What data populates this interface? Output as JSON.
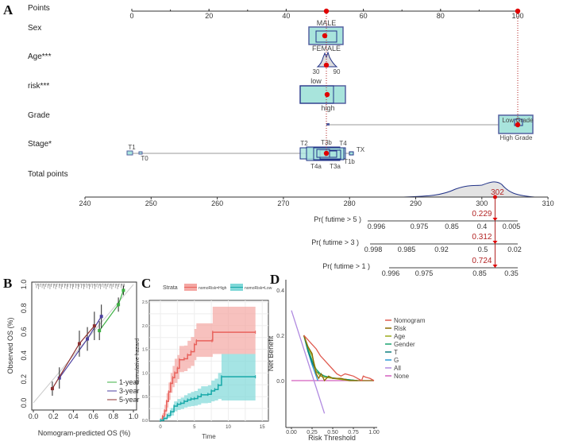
{
  "panels": [
    "A",
    "B",
    "C",
    "D"
  ],
  "chart_data": [
    {
      "type": "nomogram",
      "panel": "A",
      "points_axis": {
        "label": "Points",
        "range": [
          0,
          100
        ],
        "ticks": [
          0,
          20,
          40,
          60,
          80,
          100
        ]
      },
      "variables": [
        {
          "label": "Sex",
          "levels": [
            "MALE",
            "FEMALE"
          ],
          "points": [
            50,
            51
          ],
          "selected_points": 50
        },
        {
          "label": "Age***",
          "levels": [
            "30",
            "90"
          ],
          "points": [
            48,
            52
          ],
          "selected_points": 50.5
        },
        {
          "label": "risk***",
          "levels": [
            "low",
            "high"
          ],
          "points": [
            47,
            51
          ],
          "selected_points": 51
        },
        {
          "label": "Grade",
          "levels": [
            "Low Grade",
            "High Grade"
          ],
          "points": [
            51,
            100
          ],
          "selected_points": 100
        },
        {
          "label": "Stage*",
          "levels": [
            "T1",
            "T0",
            "T2",
            "T3b",
            "T4",
            "T1b",
            "TX",
            "T4a",
            "T3a"
          ],
          "points": [
            0,
            3,
            48,
            51,
            52,
            53,
            56,
            51,
            50
          ],
          "selected_points": 51
        }
      ],
      "total_points": {
        "label": "Total points",
        "range": [
          240,
          310
        ],
        "ticks": [
          240,
          250,
          260,
          270,
          280,
          290,
          300,
          310
        ],
        "value": "302"
      },
      "probabilities": [
        {
          "label": "Pr( futime > 5 )",
          "ticks": [
            "0.996",
            "0.975",
            "0.85",
            "0.4",
            "0.005"
          ],
          "value": "0.229"
        },
        {
          "label": "Pr( futime > 3 )",
          "ticks": [
            "0.998",
            "0.985",
            "0.92",
            "0.5",
            "0.02"
          ],
          "value": "0.312"
        },
        {
          "label": "Pr( futime > 1 )",
          "ticks": [
            "0.996",
            "0.975",
            "0.85",
            "0.35"
          ],
          "value": "0.724"
        }
      ]
    },
    {
      "type": "line",
      "panel": "B",
      "xlabel": "Nomogram-predicted OS (%)",
      "ylabel": "Observed OS (%)",
      "xlim": [
        0,
        1
      ],
      "ylim": [
        0,
        1
      ],
      "xticks": [
        "0.0",
        "0.2",
        "0.4",
        "0.6",
        "0.8",
        "1.0"
      ],
      "yticks": [
        "0.0",
        "0.2",
        "0.4",
        "0.6",
        "0.8",
        "1.0"
      ],
      "legend": "bottom-right",
      "series": [
        {
          "name": "1-year",
          "color": "#3cb043",
          "x": [
            0.66,
            0.85,
            0.9
          ],
          "y": [
            0.61,
            0.83,
            0.95
          ],
          "err": [
            0.08,
            0.06,
            0.04
          ]
        },
        {
          "name": "3-year",
          "color": "#4b3fa0",
          "x": [
            0.26,
            0.54,
            0.68
          ],
          "y": [
            0.21,
            0.54,
            0.73
          ],
          "err": [
            0.09,
            0.1,
            0.1
          ]
        },
        {
          "name": "5-year",
          "color": "#8b2f2f",
          "x": [
            0.19,
            0.46,
            0.61
          ],
          "y": [
            0.12,
            0.5,
            0.65
          ],
          "err": [
            0.06,
            0.11,
            0.12
          ]
        }
      ]
    },
    {
      "type": "line",
      "panel": "C",
      "xlabel": "Time",
      "ylabel": "Cumulative hazard",
      "legend_title": "Strata",
      "legend": "top",
      "xlim": [
        0,
        15
      ],
      "ylim": [
        0,
        2.5
      ],
      "xticks": [
        "0",
        "5",
        "10",
        "15"
      ],
      "yticks": [
        "0.0",
        "0.5",
        "1.0",
        "1.5",
        "2.0",
        "2.5"
      ],
      "series": [
        {
          "name": "nomoRisk=High",
          "color": "#e8625c",
          "fill": "#f4a7a3",
          "x": [
            0,
            0.3,
            0.6,
            0.9,
            1.2,
            1.5,
            1.8,
            2.1,
            2.5,
            2.8,
            3.5,
            4,
            4.5,
            5,
            5.3,
            7.6,
            7.7,
            14
          ],
          "y": [
            0,
            0.08,
            0.2,
            0.4,
            0.6,
            0.78,
            0.9,
            1.0,
            1.1,
            1.28,
            1.3,
            1.38,
            1.45,
            1.6,
            1.68,
            1.68,
            1.86,
            1.86
          ],
          "lower": [
            0,
            0.03,
            0.1,
            0.27,
            0.43,
            0.58,
            0.7,
            0.79,
            0.87,
            1.02,
            1.04,
            1.1,
            1.15,
            1.27,
            1.34,
            1.34,
            1.4,
            1.4
          ],
          "upper": [
            0.05,
            0.15,
            0.33,
            0.57,
            0.8,
            1.0,
            1.15,
            1.3,
            1.38,
            1.57,
            1.58,
            1.68,
            1.76,
            1.93,
            2.05,
            2.05,
            2.4,
            2.4
          ]
        },
        {
          "name": "nomoRisk=Low",
          "color": "#17a8a8",
          "fill": "#7fd8d8",
          "x": [
            0,
            0.5,
            1,
            1.5,
            2,
            2.5,
            3,
            3.5,
            4,
            4.5,
            5,
            5.5,
            6,
            7,
            7.5,
            8,
            8.5,
            9,
            14
          ],
          "y": [
            0,
            0.04,
            0.1,
            0.18,
            0.3,
            0.34,
            0.36,
            0.4,
            0.43,
            0.45,
            0.46,
            0.5,
            0.54,
            0.55,
            0.62,
            0.65,
            0.74,
            0.92,
            0.92
          ],
          "lower": [
            0,
            0.01,
            0.05,
            0.1,
            0.19,
            0.22,
            0.24,
            0.27,
            0.29,
            0.3,
            0.31,
            0.33,
            0.36,
            0.37,
            0.4,
            0.42,
            0.45,
            0.42,
            0.42
          ],
          "upper": [
            0.02,
            0.08,
            0.16,
            0.26,
            0.4,
            0.45,
            0.48,
            0.53,
            0.57,
            0.6,
            0.62,
            0.67,
            0.72,
            0.74,
            0.84,
            0.88,
            1.0,
            1.4,
            1.4
          ]
        }
      ]
    },
    {
      "type": "line",
      "panel": "D",
      "xlabel": "Risk Threshold",
      "ylabel": "Net Benefit",
      "xlim": [
        0,
        1
      ],
      "ylim": [
        -0.15,
        0.4
      ],
      "xticks": [
        "0.00",
        "0.25",
        "0.50",
        "0.75",
        "1.00"
      ],
      "yticks": [
        "0.0",
        "0.2",
        "0.4"
      ],
      "legend": "right",
      "series": [
        {
          "name": "Nomogram",
          "color": "#e05a4f",
          "x": [
            0.15,
            0.2,
            0.25,
            0.3,
            0.35,
            0.4,
            0.45,
            0.5,
            0.55,
            0.6,
            0.65,
            0.7,
            0.75,
            0.8,
            0.85,
            0.87,
            0.9,
            0.95,
            1.0
          ],
          "y": [
            0.2,
            0.18,
            0.16,
            0.14,
            0.11,
            0.09,
            0.07,
            0.05,
            0.03,
            0.02,
            0.03,
            0.025,
            0.02,
            0.01,
            0.0,
            0.02,
            0.015,
            0.01,
            0.0
          ]
        },
        {
          "name": "Risk",
          "color": "#8a6a00",
          "x": [
            0.15,
            0.2,
            0.25,
            0.28,
            0.3,
            0.33,
            0.36,
            0.4,
            0.45,
            0.5,
            0.6,
            0.7,
            0.8,
            0.9,
            1.0
          ],
          "y": [
            0.2,
            0.15,
            0.12,
            0.06,
            0.03,
            0.01,
            0.03,
            0.0,
            0.02,
            0.01,
            0.01,
            0.0,
            0.0,
            0.0,
            0.0
          ]
        },
        {
          "name": "Age",
          "color": "#9aaa1a",
          "x": [
            0.15,
            0.2,
            0.25,
            0.28,
            0.3,
            0.35,
            0.4,
            0.5,
            0.6,
            0.7,
            0.8
          ],
          "y": [
            0.2,
            0.15,
            0.11,
            0.07,
            0.04,
            0.02,
            0.015,
            0.01,
            0.005,
            0.0,
            0.0
          ]
        },
        {
          "name": "Gender",
          "color": "#1aa270",
          "x": [
            0.15,
            0.2,
            0.25,
            0.3,
            0.35,
            0.4,
            0.5,
            0.6,
            0.7,
            0.8
          ],
          "y": [
            0.2,
            0.14,
            0.09,
            0.05,
            0.03,
            0.02,
            0.012,
            0.008,
            0.004,
            0.0
          ]
        },
        {
          "name": "T",
          "color": "#0b7d7d",
          "x": [
            0.15,
            0.2,
            0.25,
            0.3,
            0.35,
            0.4,
            0.5,
            0.6,
            0.7,
            0.8
          ],
          "y": [
            0.2,
            0.13,
            0.08,
            0.04,
            0.03,
            0.02,
            0.01,
            0.008,
            0.004,
            0.0
          ]
        },
        {
          "name": "G",
          "color": "#2b9ad6",
          "x": [
            0.15,
            0.2,
            0.25,
            0.3,
            0.32
          ],
          "y": [
            0.2,
            0.13,
            0.07,
            0.02,
            0.0
          ]
        },
        {
          "name": "All",
          "color": "#b08ae0",
          "x": [
            0.0,
            0.4
          ],
          "y": [
            0.31,
            -0.145
          ]
        },
        {
          "name": "None",
          "color": "#d45fbf",
          "x": [
            0,
            1
          ],
          "y": [
            0,
            0
          ]
        }
      ]
    }
  ]
}
